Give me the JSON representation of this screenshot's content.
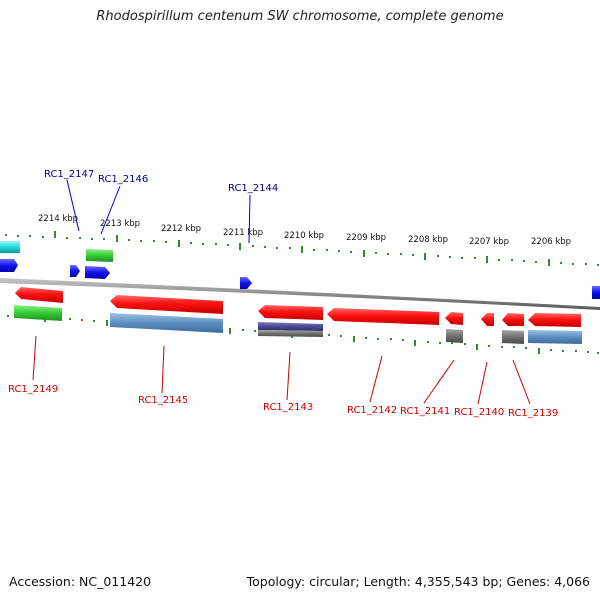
{
  "title": "Rhodospirillum centenum SW chromosome, complete genome",
  "footer": {
    "accession": "Accession: NC_011420",
    "summary": "Topology: circular; Length: 4,355,543 bp; Genes: 4,066"
  },
  "colors": {
    "background": "#ffffff",
    "axis": "#8c8c8c",
    "tick": "#2e8b2e",
    "forward_gene_label": "#00008b",
    "reverse_gene_label": "#cc0000",
    "gene_red": "#ff1010",
    "cds_green": "#33cc33",
    "cds_blue": "#5b8fc0",
    "cds_purple": "#4a4a90",
    "cds_gray": "#707070",
    "feature_blue": "#1010ee",
    "feature_cyan": "#22dddd"
  },
  "scale": {
    "unit": "kbp",
    "labels": [
      "2214 kbp",
      "2213 kbp",
      "2212 kbp",
      "2211 kbp",
      "2210 kbp",
      "2209 kbp",
      "2208 kbp",
      "2207 kbp",
      "2206 kbp"
    ]
  },
  "gene_labels": {
    "forward": [
      "RC1_2147",
      "RC1_2146",
      "RC1_2144"
    ],
    "reverse": [
      "RC1_2149",
      "RC1_2145",
      "RC1_2143",
      "RC1_2142",
      "RC1_2141",
      "RC1_2140",
      "RC1_2139"
    ]
  }
}
